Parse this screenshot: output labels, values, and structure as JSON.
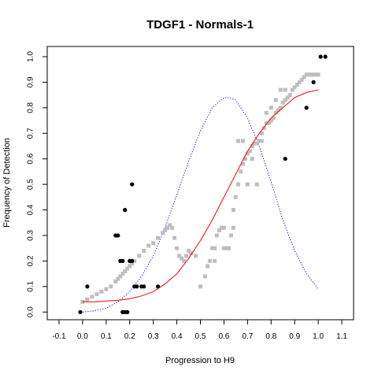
{
  "chart_data": {
    "type": "scatter",
    "title": "TDGF1 - Normals-1",
    "xlabel": "Progression to H9",
    "ylabel": "Frequency of Detection",
    "xlim": [
      -0.15,
      1.15
    ],
    "ylim": [
      -0.03,
      1.04
    ],
    "xticks": [
      "-0.1",
      "0.0",
      "0.1",
      "0.2",
      "0.3",
      "0.4",
      "0.5",
      "0.6",
      "0.7",
      "0.8",
      "0.9",
      "1.0",
      "1.1"
    ],
    "xtick_values": [
      -0.1,
      0.0,
      0.1,
      0.2,
      0.3,
      0.4,
      0.5,
      0.6,
      0.7,
      0.8,
      0.9,
      1.0,
      1.1
    ],
    "yticks": [
      "0.0",
      "0.1",
      "0.2",
      "0.3",
      "0.4",
      "0.5",
      "0.6",
      "0.7",
      "0.8",
      "0.9",
      "1.0"
    ],
    "ytick_values": [
      0.0,
      0.1,
      0.2,
      0.3,
      0.4,
      0.5,
      0.6,
      0.7,
      0.8,
      0.9,
      1.0
    ],
    "grid": false,
    "colors": {
      "black_points": "#000000",
      "gray_points": "#bebebe",
      "fitted_curve": "#ff0000",
      "density_curve": "#0000ff"
    },
    "series": [
      {
        "marker": "black-dot",
        "x": [
          -0.01,
          0.02,
          0.14,
          0.15,
          0.16,
          0.17,
          0.18,
          0.17,
          0.19,
          0.2,
          0.21,
          0.21,
          0.22,
          0.23,
          0.25,
          0.26,
          0.17,
          0.18,
          0.19,
          0.32,
          0.86,
          0.95,
          0.98,
          1.01,
          1.03
        ],
        "y": [
          0.0,
          0.1,
          0.3,
          0.3,
          0.2,
          0.2,
          0.4,
          0.0,
          0.0,
          0.2,
          0.2,
          0.5,
          0.1,
          0.1,
          0.1,
          0.1,
          0.0,
          0.0,
          0.0,
          0.1,
          0.6,
          0.8,
          0.9,
          1.0,
          1.0
        ]
      },
      {
        "marker": "gray-square",
        "x": [
          0.0,
          0.02,
          0.04,
          0.06,
          0.08,
          0.1,
          0.12,
          0.14,
          0.15,
          0.16,
          0.17,
          0.18,
          0.19,
          0.2,
          0.21,
          0.22,
          0.24,
          0.26,
          0.28,
          0.3,
          0.32,
          0.34,
          0.35,
          0.36,
          0.37,
          0.38,
          0.39,
          0.4,
          0.41,
          0.42,
          0.43,
          0.44,
          0.45,
          0.46,
          0.48,
          0.5,
          0.52,
          0.53,
          0.54,
          0.55,
          0.56,
          0.57,
          0.58,
          0.59,
          0.6,
          0.61,
          0.62,
          0.63,
          0.64,
          0.65,
          0.66,
          0.67,
          0.68,
          0.69,
          0.7,
          0.71,
          0.72,
          0.73,
          0.74,
          0.75,
          0.76,
          0.77,
          0.78,
          0.79,
          0.8,
          0.81,
          0.82,
          0.83,
          0.84,
          0.85,
          0.86,
          0.87,
          0.88,
          0.89,
          0.9,
          0.91,
          0.92,
          0.93,
          0.94,
          0.95,
          0.96,
          0.97,
          0.98,
          0.99,
          1.0,
          0.56,
          0.6,
          0.62,
          0.64,
          0.66,
          0.68,
          0.7,
          0.72,
          0.74,
          0.76,
          0.78,
          0.8,
          0.82,
          0.84,
          0.86
        ],
        "y": [
          0.04,
          0.05,
          0.06,
          0.07,
          0.08,
          0.09,
          0.1,
          0.12,
          0.13,
          0.14,
          0.15,
          0.16,
          0.17,
          0.18,
          0.19,
          0.2,
          0.22,
          0.24,
          0.26,
          0.27,
          0.29,
          0.31,
          0.32,
          0.33,
          0.34,
          0.33,
          0.29,
          0.25,
          0.22,
          0.21,
          0.2,
          0.22,
          0.24,
          0.23,
          0.22,
          0.1,
          0.14,
          0.18,
          0.2,
          0.25,
          0.25,
          0.3,
          0.32,
          0.33,
          0.33,
          0.25,
          0.25,
          0.3,
          0.4,
          0.45,
          0.5,
          0.55,
          0.58,
          0.6,
          0.62,
          0.63,
          0.65,
          0.66,
          0.66,
          0.67,
          0.7,
          0.72,
          0.74,
          0.74,
          0.75,
          0.76,
          0.78,
          0.79,
          0.8,
          0.82,
          0.83,
          0.84,
          0.85,
          0.87,
          0.88,
          0.89,
          0.9,
          0.91,
          0.92,
          0.93,
          0.93,
          0.93,
          0.93,
          0.93,
          0.93,
          0.2,
          0.25,
          0.25,
          0.33,
          0.67,
          0.67,
          0.5,
          0.6,
          0.5,
          0.67,
          0.78,
          0.8,
          0.83,
          0.87,
          0.87
        ]
      },
      {
        "type": "line",
        "style": "solid",
        "x": [
          0.0,
          0.05,
          0.1,
          0.15,
          0.2,
          0.25,
          0.3,
          0.35,
          0.4,
          0.45,
          0.5,
          0.55,
          0.6,
          0.65,
          0.7,
          0.75,
          0.8,
          0.85,
          0.9,
          0.95,
          1.0
        ],
        "y": [
          0.04,
          0.04,
          0.043,
          0.046,
          0.052,
          0.063,
          0.08,
          0.11,
          0.15,
          0.21,
          0.28,
          0.36,
          0.45,
          0.54,
          0.63,
          0.7,
          0.76,
          0.8,
          0.84,
          0.86,
          0.87
        ]
      },
      {
        "type": "line",
        "style": "dotted",
        "x": [
          0.0,
          0.05,
          0.1,
          0.15,
          0.2,
          0.25,
          0.3,
          0.35,
          0.4,
          0.45,
          0.5,
          0.55,
          0.6,
          0.62,
          0.65,
          0.7,
          0.75,
          0.8,
          0.85,
          0.9,
          0.95,
          1.0
        ],
        "y": [
          0.0,
          0.005,
          0.015,
          0.04,
          0.08,
          0.14,
          0.22,
          0.33,
          0.46,
          0.59,
          0.71,
          0.8,
          0.84,
          0.84,
          0.83,
          0.76,
          0.65,
          0.51,
          0.36,
          0.24,
          0.15,
          0.09
        ]
      }
    ]
  }
}
